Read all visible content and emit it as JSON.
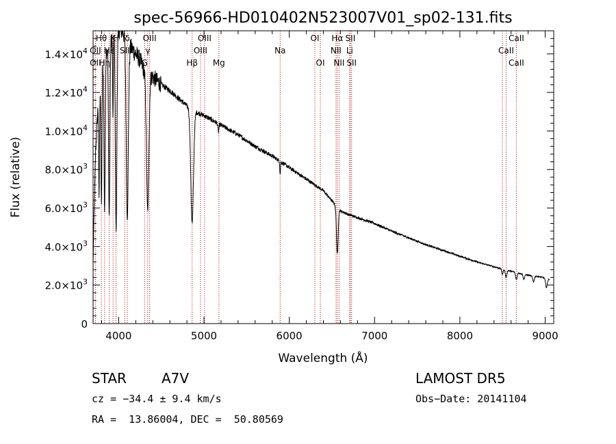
{
  "chart_data": {
    "type": "line",
    "title": "spec-56966-HD010402N523007V01_sp02-131.fits",
    "xlabel": "Wavelength (Å)",
    "ylabel": "Flux (relative)",
    "xlim": [
      3700,
      9100
    ],
    "ylim": [
      0,
      15200
    ],
    "x_ticks": [
      {
        "value": 4000,
        "label": "4000"
      },
      {
        "value": 5000,
        "label": "5000"
      },
      {
        "value": 6000,
        "label": "6000"
      },
      {
        "value": 7000,
        "label": "7000"
      },
      {
        "value": 8000,
        "label": "8000"
      },
      {
        "value": 9000,
        "label": "9000"
      }
    ],
    "y_ticks": [
      {
        "value": 0,
        "mant": "0",
        "exp": ""
      },
      {
        "value": 2000,
        "mant": "2.0×10",
        "exp": "3"
      },
      {
        "value": 4000,
        "mant": "4.0×10",
        "exp": "3"
      },
      {
        "value": 6000,
        "mant": "6.0×10",
        "exp": "3"
      },
      {
        "value": 8000,
        "mant": "8.0×10",
        "exp": "3"
      },
      {
        "value": 10000,
        "mant": "1.0×10",
        "exp": "4"
      },
      {
        "value": 12000,
        "mant": "1.2×10",
        "exp": "4"
      },
      {
        "value": 14000,
        "mant": "1.4×10",
        "exp": "4"
      }
    ],
    "grid": false,
    "line_color": "#000000",
    "marker_color": "#b00000",
    "continuum": [
      [
        3700,
        3000
      ],
      [
        3710,
        5500
      ],
      [
        3730,
        9000
      ],
      [
        3760,
        11500
      ],
      [
        3800,
        13200
      ],
      [
        3850,
        14200
      ],
      [
        3900,
        14800
      ],
      [
        3950,
        15000
      ],
      [
        4000,
        15300
      ],
      [
        4050,
        15200
      ],
      [
        4100,
        14500
      ],
      [
        4150,
        14300
      ],
      [
        4200,
        14000
      ],
      [
        4250,
        13700
      ],
      [
        4300,
        13100
      ],
      [
        4350,
        13000
      ],
      [
        4400,
        12800
      ],
      [
        4500,
        12400
      ],
      [
        4600,
        12100
      ],
      [
        4700,
        11700
      ],
      [
        4800,
        11300
      ],
      [
        4900,
        11000
      ],
      [
        5000,
        10800
      ],
      [
        5200,
        10300
      ],
      [
        5400,
        9800
      ],
      [
        5600,
        9200
      ],
      [
        5800,
        8700
      ],
      [
        6000,
        8100
      ],
      [
        6200,
        7500
      ],
      [
        6400,
        6900
      ],
      [
        6600,
        5850
      ],
      [
        6700,
        5650
      ],
      [
        6800,
        5500
      ],
      [
        7000,
        5200
      ],
      [
        7200,
        4800
      ],
      [
        7400,
        4450
      ],
      [
        7600,
        4100
      ],
      [
        7800,
        3800
      ],
      [
        8000,
        3500
      ],
      [
        8200,
        3200
      ],
      [
        8400,
        2950
      ],
      [
        8600,
        2720
      ],
      [
        8800,
        2500
      ],
      [
        8950,
        2420
      ],
      [
        9050,
        2300
      ]
    ],
    "absorption": [
      {
        "center": 3770,
        "depth": 0.45,
        "width": 5
      },
      {
        "center": 3798,
        "depth": 0.52,
        "width": 6
      },
      {
        "center": 3835,
        "depth": 0.58,
        "width": 7
      },
      {
        "center": 3889,
        "depth": 0.62,
        "width": 8
      },
      {
        "center": 3933,
        "depth": 0.3,
        "width": 4
      },
      {
        "center": 3970,
        "depth": 0.68,
        "width": 9
      },
      {
        "center": 4101,
        "depth": 0.62,
        "width": 12
      },
      {
        "center": 4340,
        "depth": 0.55,
        "width": 14
      },
      {
        "center": 4861,
        "depth": 0.53,
        "width": 16
      },
      {
        "center": 5170,
        "depth": 0.04,
        "width": 6
      },
      {
        "center": 5893,
        "depth": 0.08,
        "width": 4
      },
      {
        "center": 6563,
        "depth": 0.4,
        "width": 10
      },
      {
        "center": 8498,
        "depth": 0.1,
        "width": 8
      },
      {
        "center": 8542,
        "depth": 0.14,
        "width": 9
      },
      {
        "center": 8662,
        "depth": 0.14,
        "width": 9
      },
      {
        "center": 8750,
        "depth": 0.1,
        "width": 8
      },
      {
        "center": 8863,
        "depth": 0.12,
        "width": 9
      },
      {
        "center": 9015,
        "depth": 0.2,
        "width": 10
      }
    ],
    "lines": [
      {
        "label": "Hθ",
        "x": 3797,
        "row": 0
      },
      {
        "label": "K",
        "x": 3934,
        "row": 0
      },
      {
        "label": "H",
        "x": 3969,
        "row": 0
      },
      {
        "label": "δ",
        "x": 4102,
        "row": 0
      },
      {
        "label": "OIII",
        "x": 4363,
        "row": 0
      },
      {
        "label": "OIII",
        "x": 5007,
        "row": 0
      },
      {
        "label": "OI",
        "x": 6300,
        "row": 0
      },
      {
        "label": "Hα",
        "x": 6563,
        "row": 0
      },
      {
        "label": "SII",
        "x": 6716,
        "row": 0
      },
      {
        "label": "CaII",
        "x": 8662,
        "row": 0
      },
      {
        "label": "OII",
        "x": 3727,
        "row": 1
      },
      {
        "label": "Hε",
        "x": 3889,
        "row": 1
      },
      {
        "label": "SII",
        "x": 4072,
        "row": 1
      },
      {
        "label": "γ",
        "x": 4341,
        "row": 1
      },
      {
        "label": "OIII",
        "x": 4959,
        "row": 1
      },
      {
        "label": "Na",
        "x": 5893,
        "row": 1
      },
      {
        "label": "NII",
        "x": 6548,
        "row": 1
      },
      {
        "label": "Li",
        "x": 6708,
        "row": 1
      },
      {
        "label": "CaII",
        "x": 8542,
        "row": 1
      },
      {
        "label": "OII",
        "x": 3727,
        "row": 2
      },
      {
        "label": "Hη",
        "x": 3835,
        "row": 2
      },
      {
        "label": "G",
        "x": 4304,
        "row": 2
      },
      {
        "label": "Hβ",
        "x": 4861,
        "row": 2
      },
      {
        "label": "Mg",
        "x": 5175,
        "row": 2
      },
      {
        "label": "OI",
        "x": 6364,
        "row": 2
      },
      {
        "label": "NII",
        "x": 6584,
        "row": 2
      },
      {
        "label": "SII",
        "x": 6731,
        "row": 2
      },
      {
        "label": "CaII",
        "x": 8662,
        "row": 2
      }
    ],
    "marker_positions": [
      3727,
      3797,
      3835,
      3889,
      3934,
      3969,
      4072,
      4102,
      4304,
      4341,
      4363,
      4861,
      4959,
      5007,
      5175,
      5893,
      6300,
      6364,
      6548,
      6563,
      6584,
      6708,
      6716,
      6731,
      8498,
      8542,
      8662
    ]
  },
  "info": {
    "object_class": "STAR",
    "subclass": "A7V",
    "survey": "LAMOST DR5",
    "cz": "cz = −34.4 ± 9.4 km/s",
    "obs_date": "Obs−Date: 20141104",
    "coords": "RA =  13.86004, DEC =  50.80569"
  }
}
